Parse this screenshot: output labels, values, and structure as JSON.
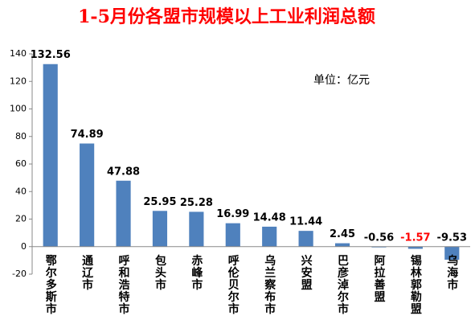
{
  "chart_data": {
    "type": "bar",
    "title": "1-5月份各盟市规模以上工业利润总额",
    "annotation": "单位：亿元",
    "categories": [
      "鄂尔多斯市",
      "通辽市",
      "呼和浩特市",
      "包头市",
      "赤峰市",
      "呼伦贝尔市",
      "乌兰察布市",
      "兴安盟",
      "巴彦淖尔市",
      "阿拉善盟",
      "锡林郭勒盟",
      "乌海市"
    ],
    "values": [
      132.56,
      74.89,
      47.88,
      25.95,
      25.28,
      16.99,
      14.48,
      11.44,
      2.45,
      -0.56,
      -1.57,
      -9.53
    ],
    "value_label_colors": [
      "#000000",
      "#000000",
      "#000000",
      "#000000",
      "#000000",
      "#000000",
      "#000000",
      "#000000",
      "#000000",
      "#000000",
      "#ff0000",
      "#000000"
    ],
    "color": "#4f81bd",
    "ylim": [
      -20,
      140
    ],
    "yticks": [
      -20,
      0,
      20,
      40,
      60,
      80,
      100,
      120,
      140
    ],
    "grid": false
  }
}
